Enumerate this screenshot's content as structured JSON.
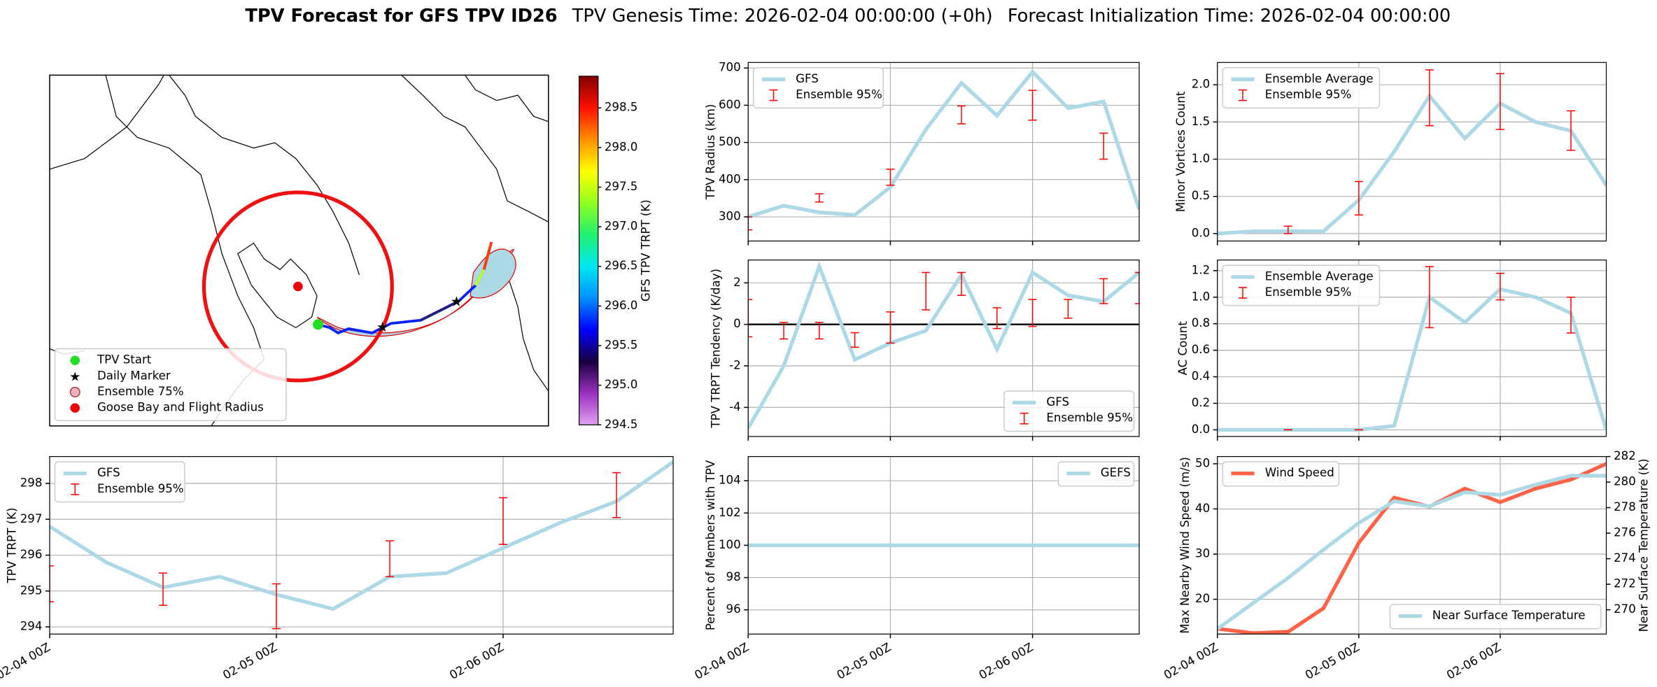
{
  "chart_data": [
    {
      "type": "map",
      "colorbar_label": "GFS TPV TRPT (K)",
      "clim": [
        294.5,
        298.9
      ],
      "cticks": [
        294.5,
        {
          "value": 295,
          "label": "295.0"
        },
        295.5,
        {
          "value": 296,
          "label": "296.0"
        },
        296.5,
        {
          "value": 297,
          "label": "297.0"
        },
        297.5,
        {
          "value": 298,
          "label": "298.0"
        },
        298.5
      ],
      "colormap": [
        "#e0a0f0",
        "#9a30c0",
        "#1a0040",
        "#0000ff",
        "#0090ff",
        "#00e8f0",
        "#20f070",
        "#90ff20",
        "#ffff00",
        "#ff9000",
        "#ff1000",
        "#800000"
      ],
      "legend": "lower left",
      "legend_items": [
        {
          "name": "TPV Start",
          "color": "#22dd22",
          "marker": "circle"
        },
        {
          "name": "Daily Marker",
          "color": "#ee22ee",
          "marker": "star"
        },
        {
          "name": "Ensemble 75%",
          "color": "#f0b0c0",
          "marker": "ring"
        },
        {
          "name": "Goose Bay and Flight Radius",
          "color": "#ee0000",
          "marker": "circle"
        }
      ]
    },
    {
      "type": "line",
      "ylabel": "TPV TRPT (K)",
      "xlim": [
        0,
        66
      ],
      "ylim": [
        293.8,
        298.75
      ],
      "grid": true,
      "legend": "upper left",
      "xticks": [
        {
          "value": 0,
          "label": "02-04 00Z"
        },
        {
          "value": 24,
          "label": "02-05 00Z"
        },
        {
          "value": 48,
          "label": "02-06 00Z"
        }
      ],
      "yticks": [
        294,
        295,
        296,
        297,
        298
      ],
      "series": [
        {
          "name": "GFS",
          "color": "#add8e6",
          "x": [
            0,
            6,
            12,
            18,
            24,
            30,
            36,
            42,
            48,
            54,
            60,
            66
          ],
          "values": [
            296.8,
            295.8,
            295.1,
            295.4,
            294.9,
            294.5,
            295.4,
            295.5,
            296.2,
            296.9,
            297.5,
            298.6
          ]
        },
        {
          "name": "Ensemble 95%",
          "color": "#ff0000",
          "x": [
            0,
            12,
            24,
            36,
            48,
            60
          ],
          "lower": [
            294.7,
            294.6,
            293.95,
            295.4,
            296.3,
            297.05
          ],
          "upper": [
            295.7,
            295.5,
            295.2,
            296.4,
            297.6,
            298.3
          ]
        }
      ]
    },
    {
      "type": "line",
      "ylabel": "TPV Radius (km)",
      "xlim": [
        0,
        66
      ],
      "ylim": [
        235,
        715
      ],
      "grid": true,
      "legend": "upper left",
      "xticks": [
        0,
        24,
        48
      ],
      "yticks": [
        300,
        400,
        500,
        600,
        700
      ],
      "series": [
        {
          "name": "GFS",
          "color": "#add8e6",
          "x": [
            0,
            6,
            12,
            18,
            24,
            30,
            36,
            42,
            48,
            54,
            60,
            66
          ],
          "values": [
            300,
            330,
            312,
            305,
            380,
            535,
            660,
            572,
            690,
            592,
            610,
            320
          ]
        },
        {
          "name": "Ensemble 95%",
          "color": "#ff0000",
          "x": [
            0,
            12,
            24,
            36,
            48,
            60
          ],
          "lower": [
            265,
            340,
            385,
            550,
            560,
            455
          ],
          "upper": [
            300,
            362,
            428,
            598,
            640,
            525
          ]
        }
      ]
    },
    {
      "type": "line",
      "ylabel": "TPV TRPT Tendency (K/day)",
      "xlim": [
        0,
        66
      ],
      "ylim": [
        -5.4,
        3.1
      ],
      "grid": true,
      "legend": "lower right",
      "hline": 0,
      "xticks": [
        0,
        24,
        48
      ],
      "yticks": [
        -4,
        -2,
        0,
        2
      ],
      "series": [
        {
          "name": "GFS",
          "color": "#add8e6",
          "x": [
            0,
            6,
            12,
            18,
            24,
            30,
            36,
            42,
            48,
            54,
            60,
            66
          ],
          "values": [
            -5,
            -2,
            2.8,
            -1.7,
            -0.9,
            -0.3,
            2.4,
            -1.2,
            2.5,
            1.4,
            1.1,
            2.5
          ]
        },
        {
          "name": "Ensemble 95%",
          "color": "#ff0000",
          "x": [
            0,
            6,
            12,
            18,
            24,
            30,
            36,
            42,
            48,
            54,
            60,
            66
          ],
          "lower": [
            -0.6,
            -0.7,
            -0.7,
            -1.1,
            -0.9,
            0.7,
            1.4,
            -0.2,
            -0.1,
            0.3,
            1.0,
            1.0
          ],
          "upper": [
            1.2,
            0.1,
            0.1,
            -0.4,
            0.6,
            2.5,
            2.5,
            0.8,
            1.2,
            1.2,
            2.2,
            2.5
          ]
        }
      ]
    },
    {
      "type": "line",
      "ylabel": "Percent of Members with TPV",
      "xlim": [
        0,
        66
      ],
      "ylim": [
        94.5,
        105.5
      ],
      "grid": true,
      "legend": "upper right",
      "xticks": [
        {
          "value": 0,
          "label": "02-04 00Z"
        },
        {
          "value": 24,
          "label": "02-05 00Z"
        },
        {
          "value": 48,
          "label": "02-06 00Z"
        }
      ],
      "yticks": [
        96,
        98,
        100,
        102,
        104
      ],
      "series": [
        {
          "name": "GEFS",
          "color": "#add8e6",
          "x": [
            0,
            6,
            12,
            18,
            24,
            30,
            36,
            42,
            48,
            54,
            60,
            66
          ],
          "values": [
            100,
            100,
            100,
            100,
            100,
            100,
            100,
            100,
            100,
            100,
            100,
            100
          ]
        }
      ]
    },
    {
      "type": "line",
      "ylabel": "Minor Vortices Count",
      "xlim": [
        0,
        66
      ],
      "ylim": [
        -0.1,
        2.3
      ],
      "grid": true,
      "legend": "upper left",
      "xticks": [
        0,
        24,
        48
      ],
      "yticks": [
        {
          "value": 0,
          "label": "0.0"
        },
        0.5,
        {
          "value": 1,
          "label": "1.0"
        },
        1.5,
        {
          "value": 2,
          "label": "2.0"
        }
      ],
      "series": [
        {
          "name": "Ensemble Average",
          "color": "#add8e6",
          "x": [
            0,
            6,
            12,
            18,
            24,
            30,
            36,
            42,
            48,
            54,
            60,
            66
          ],
          "values": [
            0,
            0.03,
            0.03,
            0.03,
            0.45,
            1.1,
            1.85,
            1.28,
            1.75,
            1.5,
            1.38,
            0.65
          ]
        },
        {
          "name": "Ensemble 95%",
          "color": "#ff0000",
          "x": [
            12,
            24,
            36,
            48,
            60
          ],
          "lower": [
            0,
            0.25,
            1.45,
            1.4,
            1.12
          ],
          "upper": [
            0.1,
            0.7,
            2.2,
            2.15,
            1.65
          ]
        }
      ]
    },
    {
      "type": "line",
      "ylabel": "AC Count",
      "xlim": [
        0,
        66
      ],
      "ylim": [
        -0.05,
        1.28
      ],
      "grid": true,
      "legend": "upper left",
      "xticks": [
        0,
        24,
        48
      ],
      "yticks": [
        {
          "value": 0,
          "label": "0.0"
        },
        0.2,
        0.4,
        0.6,
        0.8,
        {
          "value": 1,
          "label": "1.0"
        },
        1.2
      ],
      "series": [
        {
          "name": "Ensemble Average",
          "color": "#add8e6",
          "x": [
            0,
            6,
            12,
            18,
            24,
            30,
            36,
            42,
            48,
            54,
            60,
            66
          ],
          "values": [
            0,
            0,
            0,
            0,
            0,
            0.03,
            1.0,
            0.81,
            1.06,
            1.0,
            0.88,
            0
          ]
        },
        {
          "name": "Ensemble 95%",
          "color": "#ff0000",
          "x": [
            12,
            24,
            36,
            48,
            60
          ],
          "lower": [
            0,
            0,
            0.77,
            0.98,
            0.73
          ],
          "upper": [
            0,
            0,
            1.23,
            1.18,
            1.0
          ]
        }
      ]
    },
    {
      "type": "line",
      "ylabel": "Max Nearby Wind Speed (m/s)",
      "y2label": "Near Surface Temperature (K)",
      "ylabel_color": "#ff6347",
      "y2label_color": "#4169e1",
      "xlim": [
        0,
        66
      ],
      "ylim": [
        12.3,
        51.6
      ],
      "y2lim": [
        268.1,
        282
      ],
      "grid": true,
      "xticks": [
        {
          "value": 0,
          "label": "02-04 00Z"
        },
        {
          "value": 24,
          "label": "02-05 00Z"
        },
        {
          "value": 48,
          "label": "02-06 00Z"
        }
      ],
      "yticks": [
        20,
        30,
        40,
        50
      ],
      "y2ticks": [
        270,
        272,
        274,
        276,
        278,
        280,
        282
      ],
      "series": [
        {
          "name": "Wind Speed",
          "color": "#ff6347",
          "legend": "upper left",
          "x": [
            0,
            6,
            12,
            18,
            24,
            30,
            36,
            42,
            48,
            54,
            60,
            66
          ],
          "values": [
            13.5,
            12.5,
            12.8,
            18,
            32.5,
            42.5,
            40.5,
            44.5,
            41.5,
            44.5,
            46.5,
            50
          ]
        },
        {
          "name": "Near Surface Temperature",
          "color": "#add8e6",
          "axis": "y2",
          "legend": "lower right",
          "x": [
            0,
            6,
            12,
            18,
            24,
            30,
            36,
            42,
            48,
            54,
            60,
            66
          ],
          "values": [
            268.5,
            270.5,
            272.5,
            274.7,
            276.8,
            278.5,
            278.1,
            279.2,
            279.0,
            279.8,
            280.5,
            280.5
          ]
        }
      ]
    }
  ],
  "header": {
    "title": "TPV Forecast for GFS TPV ID26",
    "genesis": "TPV Genesis Time: 2026-02-04 00:00:00 (+0h)",
    "init": "Forecast Initialization Time: 2026-02-04 00:00:00"
  }
}
